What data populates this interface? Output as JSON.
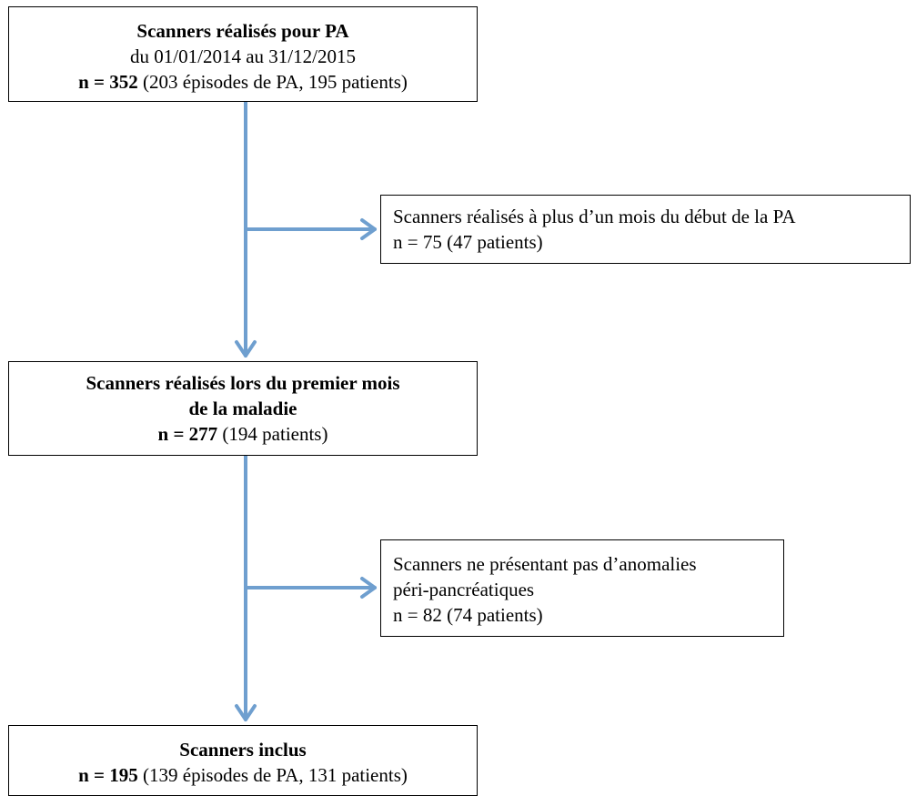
{
  "boxes": {
    "initial": {
      "title": "Scanners réalisés pour PA",
      "period": "du 01/01/2014 au 31/12/2015",
      "n_label": "n = 352",
      "n_detail": " (203 épisodes de PA, 195 patients)"
    },
    "excluded_late": {
      "text": "Scanners réalisés à plus d’un mois du début de la PA",
      "count": "n = 75 (47 patients)"
    },
    "first_month": {
      "title_line1": "Scanners réalisés lors du premier mois",
      "title_line2": "de la maladie",
      "n_label": "n = 277",
      "n_detail": " (194 patients)"
    },
    "excluded_no_anomaly": {
      "text_line1": "Scanners ne présentant pas d’anomalies",
      "text_line2": "péri-pancréatiques",
      "count": "n = 82 (74 patients)"
    },
    "included": {
      "title": "Scanners inclus",
      "n_label": "n = 195",
      "n_detail": " (139 épisodes de PA, 131 patients)"
    }
  },
  "colors": {
    "arrow": "#6f9fcf",
    "border": "#000000"
  }
}
